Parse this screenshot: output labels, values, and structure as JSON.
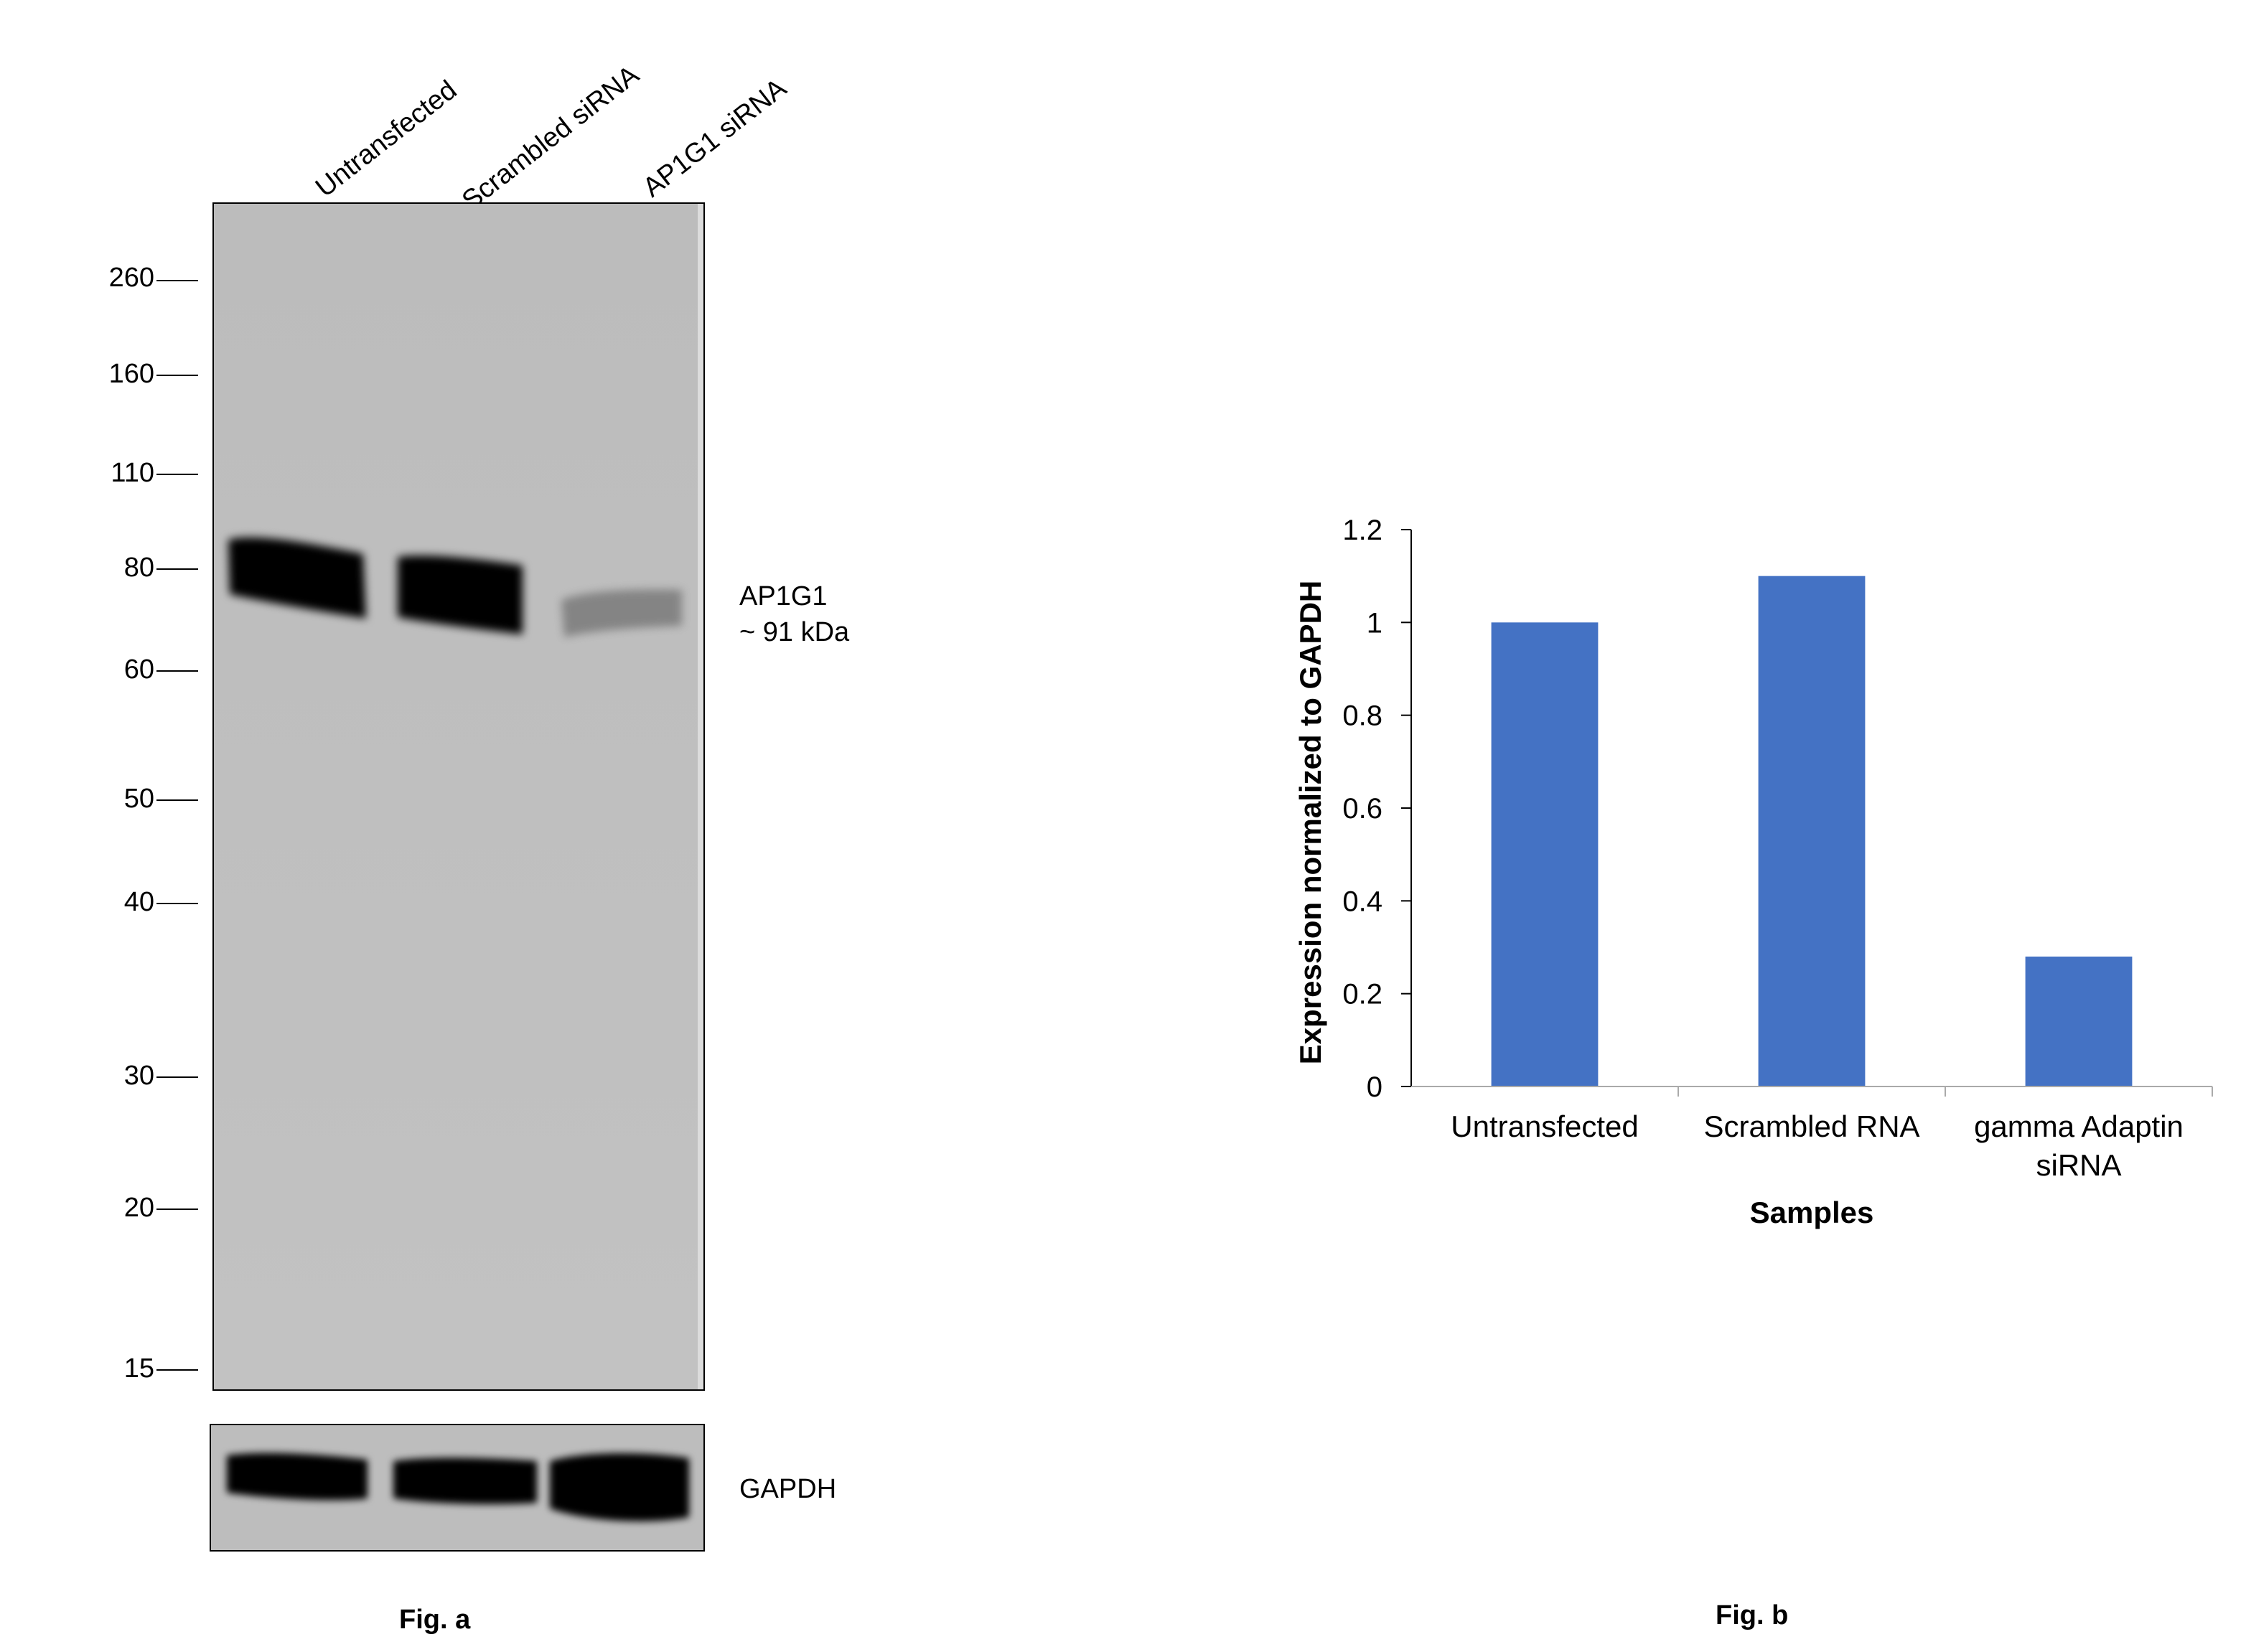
{
  "figure_a": {
    "lanes": [
      "Untransfected",
      "Scrambled siRNA",
      "AP1G1 siRNA"
    ],
    "mw_markers": [
      "260",
      "160",
      "110",
      "80",
      "60",
      "50",
      "40",
      "30",
      "20",
      "15"
    ],
    "band_label_line1": "AP1G1",
    "band_label_line2": "~ 91 kDa",
    "loading_control_label": "GAPDH",
    "caption": "Fig. a",
    "band_intensity": [
      1.0,
      0.95,
      0.25
    ],
    "gapdh_intensity": [
      0.9,
      0.9,
      1.0
    ]
  },
  "figure_b": {
    "caption": "Fig. b"
  },
  "chart_data": {
    "type": "bar",
    "categories": [
      "Untransfected",
      "Scrambled RNA",
      "gamma Adaptin siRNA"
    ],
    "category_lines": [
      [
        "Untransfected"
      ],
      [
        "Scrambled RNA"
      ],
      [
        "gamma Adaptin",
        "siRNA"
      ]
    ],
    "values": [
      1.0,
      1.1,
      0.28
    ],
    "xlabel": "Samples",
    "ylabel": "Expression normalized to GAPDH",
    "ylim": [
      0,
      1.2
    ],
    "yticks": [
      "0",
      "0.2",
      "0.4",
      "0.6",
      "0.8",
      "1",
      "1.2"
    ],
    "bar_color": "#4472C4",
    "grid": false,
    "legend": "none"
  }
}
